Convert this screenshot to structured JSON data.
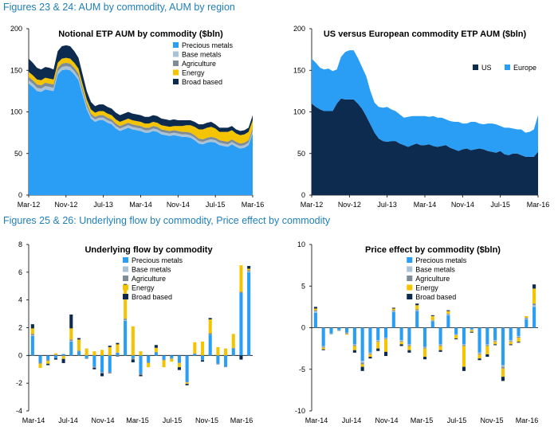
{
  "headings": {
    "fig23_24": "Figures 23 & 24: AUM by commodity, AUM by region",
    "fig25_26": "Figures 25 & 26: Underlying flow by commodity, Price effect by commodity"
  },
  "colors": {
    "heading": "#1f7fb9",
    "precious_metals": "#2a9df4",
    "base_metals": "#a9c2d6",
    "agriculture": "#7e8c98",
    "energy": "#f5c400",
    "broad_based": "#0d2b4e",
    "us": "#0d2b4e",
    "europe": "#2a9df4"
  },
  "chart_data": [
    {
      "id": "fig23",
      "type": "area",
      "stacked": true,
      "title": "Notional ETP AUM by commodity ($bln)",
      "xlabel": "",
      "ylabel": "",
      "x_ticks": [
        "Mar-12",
        "Nov-12",
        "Jul-13",
        "Mar-14",
        "Nov-14",
        "Jul-15",
        "Mar-16"
      ],
      "ylim": [
        0,
        200
      ],
      "y_ticks": [
        0,
        50,
        100,
        150,
        200
      ],
      "legend_position": "top-right",
      "series": [
        {
          "name": "Precious metals",
          "key": "precious_metals",
          "values": [
            134,
            130,
            125,
            124,
            127,
            126,
            125,
            145,
            150,
            151,
            150,
            145,
            138,
            120,
            103,
            92,
            88,
            90,
            90,
            87,
            85,
            80,
            77,
            79,
            81,
            79,
            78,
            77,
            75,
            75,
            77,
            76,
            73,
            72,
            71,
            72,
            71,
            70,
            70,
            69,
            66,
            62,
            61,
            63,
            64,
            63,
            60,
            59,
            58,
            61,
            58,
            56,
            57,
            60,
            74
          ]
        },
        {
          "name": "Base metals",
          "key": "base_metals",
          "values": [
            4,
            4,
            4,
            4,
            4,
            4,
            4,
            4,
            4,
            4,
            4,
            4,
            4,
            4,
            4,
            3,
            3,
            3,
            3,
            3,
            3,
            3,
            3,
            3,
            3,
            3,
            3,
            3,
            3,
            3,
            3,
            3,
            3,
            3,
            3,
            3,
            3,
            3,
            3,
            3,
            3,
            3,
            3,
            3,
            3,
            3,
            3,
            3,
            3,
            3,
            3,
            3,
            3,
            3,
            3
          ]
        },
        {
          "name": "Agriculture",
          "key": "agriculture",
          "values": [
            4,
            4,
            4,
            4,
            4,
            4,
            4,
            4,
            4,
            4,
            4,
            4,
            4,
            4,
            3,
            3,
            3,
            3,
            3,
            3,
            3,
            3,
            3,
            3,
            3,
            3,
            3,
            3,
            3,
            3,
            3,
            3,
            3,
            3,
            3,
            3,
            3,
            3,
            3,
            3,
            3,
            3,
            3,
            3,
            3,
            3,
            3,
            3,
            3,
            3,
            3,
            3,
            3,
            3,
            3
          ]
        },
        {
          "name": "Energy",
          "key": "energy",
          "values": [
            6,
            6,
            6,
            6,
            6,
            6,
            6,
            6,
            6,
            6,
            6,
            6,
            6,
            5,
            5,
            5,
            5,
            5,
            5,
            5,
            5,
            5,
            5,
            5,
            5,
            5,
            5,
            5,
            5,
            5,
            5,
            5,
            5,
            5,
            5,
            5,
            6,
            7,
            8,
            9,
            10,
            11,
            12,
            12,
            12,
            11,
            10,
            11,
            12,
            11,
            10,
            10,
            10,
            10,
            10
          ]
        },
        {
          "name": "Broad based",
          "key": "broad_based",
          "values": [
            16,
            15,
            14,
            13,
            13,
            13,
            12,
            14,
            15,
            15,
            15,
            14,
            13,
            12,
            10,
            9,
            8,
            8,
            8,
            8,
            8,
            8,
            8,
            8,
            8,
            8,
            8,
            8,
            8,
            8,
            8,
            8,
            8,
            8,
            8,
            8,
            7,
            7,
            6,
            6,
            6,
            6,
            6,
            6,
            6,
            5,
            5,
            5,
            5,
            5,
            5,
            5,
            5,
            5,
            6
          ]
        }
      ]
    },
    {
      "id": "fig24",
      "type": "area",
      "stacked": true,
      "title": "US versus European commodity ETP AUM ($bln)",
      "xlabel": "",
      "ylabel": "",
      "x_ticks": [
        "Mar-12",
        "Nov-12",
        "Jul-13",
        "Mar-14",
        "Nov-14",
        "Jul-15",
        "Mar-16"
      ],
      "ylim": [
        0,
        200
      ],
      "y_ticks": [
        0,
        50,
        100,
        150,
        200
      ],
      "legend_position": "top-right",
      "series": [
        {
          "name": "US",
          "key": "us",
          "values": [
            110,
            106,
            103,
            101,
            101,
            101,
            110,
            116,
            115,
            115,
            115,
            110,
            104,
            95,
            85,
            75,
            68,
            65,
            64,
            65,
            65,
            62,
            60,
            58,
            60,
            62,
            60,
            60,
            61,
            59,
            58,
            59,
            60,
            57,
            55,
            53,
            55,
            56,
            54,
            55,
            56,
            55,
            53,
            52,
            51,
            53,
            49,
            48,
            50,
            50,
            48,
            46,
            46,
            46,
            52
          ]
        },
        {
          "name": "Europe",
          "key": "europe",
          "values": [
            54,
            53,
            50,
            50,
            51,
            48,
            41,
            50,
            57,
            59,
            59,
            55,
            50,
            48,
            40,
            36,
            38,
            40,
            42,
            38,
            36,
            35,
            33,
            36,
            35,
            33,
            35,
            35,
            33,
            36,
            35,
            34,
            31,
            32,
            33,
            35,
            31,
            30,
            34,
            33,
            30,
            30,
            33,
            34,
            34,
            30,
            32,
            33,
            30,
            29,
            31,
            29,
            30,
            33,
            44
          ]
        }
      ]
    },
    {
      "id": "fig25",
      "type": "bar",
      "stacked": true,
      "title": "Underlying flow by commodity",
      "xlabel": "",
      "ylabel": "",
      "x_ticks": [
        "Mar-14",
        "Jul-14",
        "Nov-14",
        "Mar-15",
        "Jul-15",
        "Nov-15",
        "Mar-16"
      ],
      "ylim": [
        -4,
        8
      ],
      "y_ticks": [
        -4,
        -2,
        0,
        2,
        4,
        6,
        8
      ],
      "legend_position": "top-right",
      "series": [
        {
          "name": "Precious metals",
          "key": "precious_metals",
          "values": [
            1.4,
            -0.5,
            -0.3,
            -0.2,
            0.1,
            1.0,
            0.3,
            -0.2,
            -0.8,
            -1.2,
            -1.2,
            0.2,
            2.5,
            -0.2,
            -1.3,
            -0.5,
            0.2,
            -0.3,
            -0.2,
            -0.5,
            -1.9,
            0.1,
            -0.3,
            1.5,
            -0.6,
            -0.8,
            0.5,
            4.5,
            6.0
          ]
        },
        {
          "name": "Base metals",
          "key": "base_metals",
          "values": [
            0.05,
            0.0,
            0.0,
            0.0,
            0.0,
            0.05,
            0.0,
            0.0,
            0.0,
            0.0,
            0.0,
            0.0,
            0.05,
            0.0,
            0.0,
            0.0,
            0.0,
            0.0,
            0.0,
            0.0,
            0.0,
            0.0,
            0.0,
            0.0,
            0.0,
            0.0,
            0.0,
            0.0,
            0.05
          ]
        },
        {
          "name": "Agriculture",
          "key": "agriculture",
          "values": [
            0.1,
            -0.1,
            -0.1,
            0.05,
            -0.05,
            0.1,
            0.05,
            -0.05,
            -0.1,
            -0.1,
            -0.1,
            -0.1,
            0.1,
            -0.1,
            -0.1,
            -0.05,
            0.05,
            -0.05,
            -0.05,
            -0.05,
            -0.05,
            0.05,
            -0.05,
            0.1,
            -0.05,
            -0.05,
            0.05,
            0.1,
            0.1
          ]
        },
        {
          "name": "Energy",
          "key": "energy",
          "values": [
            0.4,
            -0.3,
            -0.2,
            0.1,
            -0.2,
            0.8,
            0.8,
            0.5,
            0.3,
            0.4,
            0.6,
            0.6,
            2.4,
            2.1,
            0.3,
            -0.3,
            0.3,
            -0.5,
            -0.2,
            -0.3,
            -0.1,
            0.8,
            1.0,
            1.0,
            0.6,
            0.5,
            1.0,
            1.9,
            0.1
          ]
        },
        {
          "name": "Broad based",
          "key": "broad_based",
          "values": [
            0.3,
            0.0,
            -0.1,
            -0.1,
            -0.3,
            1.0,
            0.1,
            0.0,
            -0.1,
            -0.2,
            0.1,
            0.1,
            0.1,
            -0.2,
            -0.1,
            0.0,
            0.2,
            0.0,
            0.0,
            -0.2,
            -0.1,
            0.0,
            -0.1,
            0.1,
            0.0,
            0.0,
            0.0,
            -0.3,
            0.2
          ]
        }
      ]
    },
    {
      "id": "fig26",
      "type": "bar",
      "stacked": true,
      "title": "Price effect by commodity ($bln)",
      "xlabel": "",
      "ylabel": "",
      "x_ticks": [
        "Mar-14",
        "Jul-14",
        "Nov-14",
        "Mar-15",
        "Jul-15",
        "Nov-15",
        "Mar-16"
      ],
      "ylim": [
        -10,
        10
      ],
      "y_ticks": [
        -10,
        -5,
        0,
        5,
        10
      ],
      "legend_position": "top-right",
      "series": [
        {
          "name": "Precious metals",
          "key": "precious_metals",
          "values": [
            1.8,
            -2.2,
            -0.7,
            -0.3,
            -0.6,
            -2.0,
            -4.0,
            -3.0,
            -1.5,
            -1.2,
            1.9,
            -1.5,
            -2.0,
            2.0,
            -2.3,
            0.8,
            -2.0,
            1.5,
            -0.8,
            -2.0,
            -0.2,
            -3.0,
            -2.0,
            -1.5,
            -4.5,
            -1.5,
            -1.0,
            1.0,
            2.5
          ]
        },
        {
          "name": "Base metals",
          "key": "base_metals",
          "values": [
            0.2,
            -0.1,
            -0.05,
            -0.05,
            -0.05,
            -0.1,
            -0.2,
            -0.1,
            -0.1,
            -0.1,
            0.1,
            -0.1,
            -0.1,
            0.1,
            -0.1,
            0.05,
            -0.1,
            0.1,
            -0.05,
            -0.1,
            -0.05,
            -0.1,
            -0.1,
            -0.1,
            -0.2,
            -0.1,
            -0.1,
            0.1,
            0.2
          ]
        },
        {
          "name": "Agriculture",
          "key": "agriculture",
          "values": [
            0.1,
            -0.1,
            -0.05,
            -0.05,
            -0.1,
            -0.1,
            -0.2,
            -0.1,
            -0.1,
            -0.1,
            0.1,
            -0.1,
            -0.1,
            0.1,
            -0.1,
            0.05,
            -0.1,
            0.1,
            -0.05,
            -0.1,
            -0.05,
            -0.1,
            -0.1,
            -0.1,
            -0.2,
            -0.1,
            -0.1,
            0.1,
            0.2
          ]
        },
        {
          "name": "Energy",
          "key": "energy",
          "values": [
            0.2,
            -0.2,
            0.0,
            0.0,
            -0.1,
            -0.5,
            -0.3,
            -0.3,
            -0.8,
            -1.5,
            0.2,
            -0.3,
            -0.5,
            0.5,
            -1.0,
            0.5,
            -0.5,
            0.3,
            -0.4,
            -2.5,
            -0.2,
            -0.5,
            -1.0,
            -0.3,
            -1.0,
            -0.3,
            -0.5,
            0.2,
            1.8
          ]
        },
        {
          "name": "Broad based",
          "key": "broad_based",
          "values": [
            0.2,
            -0.1,
            0.0,
            0.0,
            0.0,
            -0.3,
            -0.5,
            -0.2,
            -0.3,
            -0.5,
            0.1,
            -0.2,
            -0.3,
            0.2,
            -0.3,
            0.1,
            -0.2,
            0.1,
            -0.1,
            -0.5,
            -0.1,
            -0.2,
            -0.3,
            -0.1,
            -0.5,
            -0.1,
            -0.1,
            0.0,
            0.5
          ]
        }
      ]
    }
  ]
}
